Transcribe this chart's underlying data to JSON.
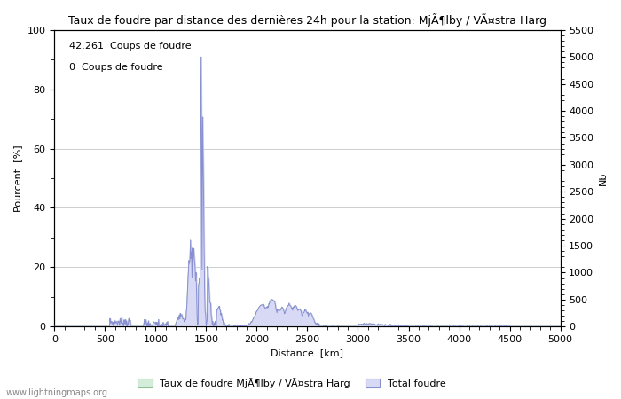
{
  "title": "Taux de foudre par distance des dernières 24h pour la station: MjÃ¶lby / VÃ¤stra Harg",
  "xlabel": "Distance  [km]",
  "ylabel_left": "Pourcent  [%]",
  "ylabel_right": "Nb",
  "annotation_line1": "42.261  Coups de foudre",
  "annotation_line2": "0  Coups de foudre",
  "legend_label1": "Taux de foudre MjÃ¶lby / VÃ¤stra Harg",
  "legend_label2": "Total foudre",
  "watermark": "www.lightningmaps.org",
  "xlim": [
    0,
    5000
  ],
  "ylim_left": [
    0,
    100
  ],
  "ylim_right": [
    0,
    5500
  ],
  "xticks": [
    0,
    500,
    1000,
    1500,
    2000,
    2500,
    3000,
    3500,
    4000,
    4500,
    5000
  ],
  "yticks_left": [
    0,
    20,
    40,
    60,
    80,
    100
  ],
  "yticks_right": [
    0,
    500,
    1000,
    1500,
    2000,
    2500,
    3000,
    3500,
    4000,
    4500,
    5000,
    5500
  ],
  "color_fill_blue": "#d8daf5",
  "color_line_blue": "#8890d0",
  "color_fill_green": "#d4edda",
  "color_line_green": "#90c090",
  "background_color": "#ffffff",
  "grid_color": "#bbbbbb",
  "title_fontsize": 9,
  "axis_fontsize": 8,
  "annotation_fontsize": 8
}
